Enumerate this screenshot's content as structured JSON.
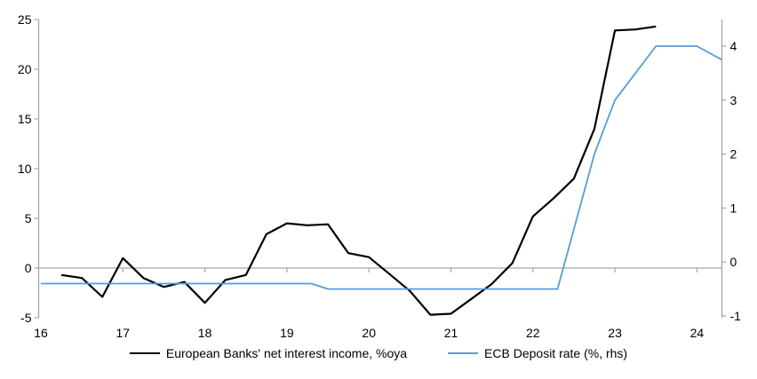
{
  "chart_data": {
    "type": "line",
    "title": "",
    "x_axis": {
      "ticks": [
        "16",
        "17",
        "18",
        "19",
        "20",
        "21",
        "22",
        "23",
        "24"
      ],
      "min": 16,
      "max": 24.3
    },
    "left_axis": {
      "label": "European Banks' net interest income, %oya",
      "ticks": [
        "25",
        "20",
        "15",
        "10",
        "5",
        "0",
        "-5"
      ],
      "min": -5,
      "max": 25
    },
    "right_axis": {
      "label": "ECB Deposit rate (%, rhs)",
      "ticks": [
        "4",
        "3",
        "2",
        "1",
        "0",
        "-1"
      ],
      "min": -1.07,
      "max": 4.47
    },
    "gridlines": "zero-line-only",
    "legend_position": "bottom-center",
    "series": [
      {
        "name": "European Banks' net interest income, %oya",
        "axis": "left",
        "color": "#000000",
        "points": [
          [
            16.25,
            -0.7
          ],
          [
            16.5,
            -1.0
          ],
          [
            16.75,
            -2.9
          ],
          [
            17.0,
            1.0
          ],
          [
            17.25,
            -1.0
          ],
          [
            17.5,
            -1.9
          ],
          [
            17.75,
            -1.4
          ],
          [
            18.0,
            -3.5
          ],
          [
            18.25,
            -1.2
          ],
          [
            18.5,
            -0.7
          ],
          [
            18.75,
            3.4
          ],
          [
            19.0,
            4.5
          ],
          [
            19.25,
            4.3
          ],
          [
            19.5,
            4.4
          ],
          [
            19.75,
            1.5
          ],
          [
            20.0,
            1.1
          ],
          [
            20.25,
            -0.6
          ],
          [
            20.5,
            -2.3
          ],
          [
            20.75,
            -4.7
          ],
          [
            21.0,
            -4.6
          ],
          [
            21.25,
            -3.1
          ],
          [
            21.5,
            -1.6
          ],
          [
            21.75,
            0.5
          ],
          [
            22.0,
            5.2
          ],
          [
            22.25,
            7.0
          ],
          [
            22.5,
            9.0
          ],
          [
            22.75,
            14.0
          ],
          [
            23.0,
            23.9
          ],
          [
            23.25,
            24.0
          ],
          [
            23.5,
            24.3
          ]
        ]
      },
      {
        "name": "ECB Deposit rate (%, rhs)",
        "axis": "right",
        "color": "#5B9BD5",
        "points": [
          [
            16.0,
            -0.4
          ],
          [
            19.3,
            -0.4
          ],
          [
            19.5,
            -0.5
          ],
          [
            22.3,
            -0.5
          ],
          [
            22.75,
            2.0
          ],
          [
            23.0,
            3.0
          ],
          [
            23.5,
            4.0
          ],
          [
            24.0,
            4.0
          ],
          [
            24.3,
            3.75
          ]
        ]
      }
    ],
    "legend": [
      {
        "label": "European Banks' net interest income, %oya",
        "color": "#000000"
      },
      {
        "label": "ECB Deposit rate (%, rhs)",
        "color": "#5B9BD5"
      }
    ],
    "colors": {
      "axis": "#A6A6A6",
      "zero_gridline": "#A6A6A6",
      "text": "#000000",
      "background": "#FFFFFF",
      "series_black": "#000000",
      "series_blue": "#5B9BD5"
    }
  }
}
